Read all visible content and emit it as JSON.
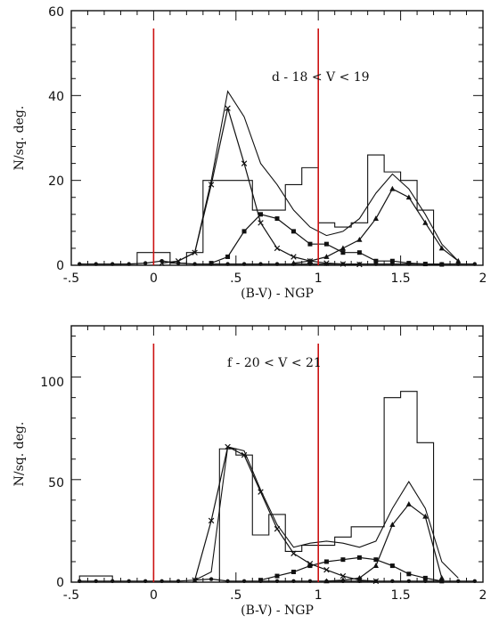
{
  "chart_data": [
    {
      "type": "line",
      "panel": "top",
      "annotation": "d - 18 < V < 19",
      "xlabel": "(B-V) - NGP",
      "ylabel": "N/sq. deg.",
      "xlim": [
        -0.5,
        2.0
      ],
      "ylim": [
        0,
        60
      ],
      "xticks": [
        -0.5,
        0,
        0.5,
        1,
        1.5,
        2
      ],
      "xtick_labels": [
        "-.5",
        "0",
        ".5",
        "1",
        "1.5",
        "2"
      ],
      "yticks": [
        0,
        20,
        40,
        60
      ],
      "ytick_labels": [
        "0",
        "20",
        "40",
        "60"
      ],
      "reference_lines_x": [
        0,
        1
      ],
      "reference_line_color": "#cc1111",
      "histogram": {
        "edges": [
          -0.1,
          0.1,
          0.2,
          0.3,
          0.4,
          0.6,
          0.7,
          0.8,
          0.9,
          1.0,
          1.1,
          1.2,
          1.3,
          1.4,
          1.5,
          1.6,
          1.7
        ],
        "counts": [
          3,
          0.5,
          3,
          20,
          20,
          13,
          13,
          19,
          23,
          10,
          9,
          10,
          26,
          22,
          20,
          13
        ]
      },
      "series": [
        {
          "name": "",
          "marker": "none",
          "x": [
            0.15,
            0.25,
            0.35,
            0.45,
            0.55,
            0.65,
            0.75,
            0.85,
            0.95,
            1.05,
            1.15,
            1.25,
            1.35,
            1.45,
            1.55,
            1.65,
            1.75,
            1.85
          ],
          "y": [
            1,
            3,
            20,
            41,
            35,
            24,
            19,
            13,
            9,
            7,
            8,
            11,
            17,
            21.5,
            18,
            12,
            5,
            1
          ]
        },
        {
          "name": "",
          "marker": "x",
          "x": [
            0.05,
            0.15,
            0.25,
            0.35,
            0.45,
            0.55,
            0.65,
            0.75,
            0.85,
            0.95,
            1.05,
            1.15,
            1.25
          ],
          "y": [
            0.5,
            1,
            3,
            19,
            37,
            24,
            10,
            4,
            2,
            1,
            0.5,
            0.3,
            0.2
          ]
        },
        {
          "name": "",
          "marker": "square",
          "x": [
            0.35,
            0.45,
            0.55,
            0.65,
            0.75,
            0.85,
            0.95,
            1.05,
            1.15,
            1.25,
            1.35,
            1.45,
            1.55,
            1.65,
            1.75
          ],
          "y": [
            0.5,
            2,
            8,
            12,
            11,
            8,
            5,
            5,
            3,
            3,
            1,
            1,
            0.5,
            0.3,
            0.2
          ]
        },
        {
          "name": "",
          "marker": "triangle",
          "x": [
            0.85,
            0.95,
            1.05,
            1.15,
            1.25,
            1.35,
            1.45,
            1.55,
            1.65,
            1.75,
            1.85
          ],
          "y": [
            0.5,
            1,
            2,
            4,
            6,
            11,
            18,
            16,
            10,
            4,
            1
          ]
        },
        {
          "name": "",
          "marker": "dot",
          "x": [
            -0.45,
            -0.35,
            -0.25,
            -0.15,
            -0.05,
            0.05,
            0.15,
            0.25,
            0.35,
            0.45,
            0.55,
            0.65,
            0.75,
            0.85,
            0.95,
            1.05,
            1.15,
            1.25,
            1.35,
            1.45,
            1.55,
            1.65,
            1.75,
            1.85,
            1.95
          ],
          "y": [
            0.3,
            0.3,
            0.3,
            0.3,
            0.5,
            1,
            0.5,
            0.3,
            0.3,
            0.3,
            0.3,
            0.3,
            0.3,
            0.3,
            0.3,
            0.3,
            0.3,
            0.3,
            0.3,
            0.3,
            0.3,
            0.3,
            0.3,
            0.3,
            0.3
          ]
        }
      ]
    },
    {
      "type": "line",
      "panel": "bottom",
      "annotation": "f - 20 < V < 21",
      "xlabel": "(B-V) - NGP",
      "ylabel": "N/sq. deg.",
      "xlim": [
        -0.5,
        2.0
      ],
      "ylim": [
        0,
        125
      ],
      "xticks": [
        -0.5,
        0,
        0.5,
        1,
        1.5,
        2
      ],
      "xtick_labels": [
        "-.5",
        "0",
        ".5",
        "1",
        "1.5",
        "2"
      ],
      "yticks": [
        0,
        50,
        100
      ],
      "ytick_labels": [
        "0",
        "50",
        "100"
      ],
      "reference_lines_x": [
        0,
        1
      ],
      "reference_line_color": "#cc1111",
      "histogram": {
        "edges": [
          -0.45,
          -0.25,
          0.4,
          0.5,
          0.6,
          0.7,
          0.8,
          0.9,
          1.0,
          1.1,
          1.2,
          1.3,
          1.4,
          1.5,
          1.6,
          1.7
        ],
        "counts": [
          3,
          0,
          65,
          62,
          23,
          33,
          15,
          18,
          18,
          22,
          27,
          27,
          90,
          93,
          68
        ]
      },
      "series": [
        {
          "name": "",
          "marker": "none",
          "x": [
            0.25,
            0.35,
            0.45,
            0.55,
            0.65,
            0.75,
            0.85,
            0.95,
            1.05,
            1.15,
            1.25,
            1.35,
            1.45,
            1.55,
            1.65,
            1.75,
            1.85
          ],
          "y": [
            1,
            5,
            66,
            64,
            45,
            28,
            17,
            19,
            20,
            19,
            17,
            20,
            36,
            49,
            36,
            10,
            2
          ]
        },
        {
          "name": "",
          "marker": "x",
          "x": [
            0.25,
            0.35,
            0.45,
            0.55,
            0.65,
            0.75,
            0.85,
            0.95,
            1.05,
            1.15,
            1.25,
            1.35
          ],
          "y": [
            1,
            30,
            66,
            62,
            44,
            26,
            14,
            9,
            6,
            3,
            1,
            0.5
          ]
        },
        {
          "name": "",
          "marker": "square",
          "x": [
            0.65,
            0.75,
            0.85,
            0.95,
            1.05,
            1.15,
            1.25,
            1.35,
            1.45,
            1.55,
            1.65,
            1.75
          ],
          "y": [
            1,
            3,
            5,
            8,
            10,
            11,
            12,
            11,
            8,
            4,
            2,
            0.5
          ]
        },
        {
          "name": "",
          "marker": "triangle",
          "x": [
            1.05,
            1.15,
            1.25,
            1.35,
            1.45,
            1.55,
            1.65,
            1.75
          ],
          "y": [
            0.5,
            1,
            2,
            8,
            28,
            38,
            32,
            2
          ]
        },
        {
          "name": "",
          "marker": "dot",
          "x": [
            -0.45,
            -0.35,
            -0.25,
            -0.15,
            -0.05,
            0.05,
            0.15,
            0.25,
            0.35,
            0.45,
            0.55,
            0.65,
            0.75,
            0.85,
            0.95,
            1.05,
            1.15,
            1.25,
            1.35,
            1.45,
            1.55,
            1.65,
            1.75,
            1.85,
            1.95
          ],
          "y": [
            0.5,
            0.5,
            0.5,
            0.5,
            0.5,
            0.5,
            0.5,
            1,
            1.5,
            0.5,
            0.5,
            0.5,
            0.5,
            0.5,
            0.5,
            0.5,
            0.5,
            0.5,
            0.5,
            0.5,
            0.5,
            0.5,
            0.5,
            0.5,
            0.5
          ]
        }
      ]
    }
  ]
}
